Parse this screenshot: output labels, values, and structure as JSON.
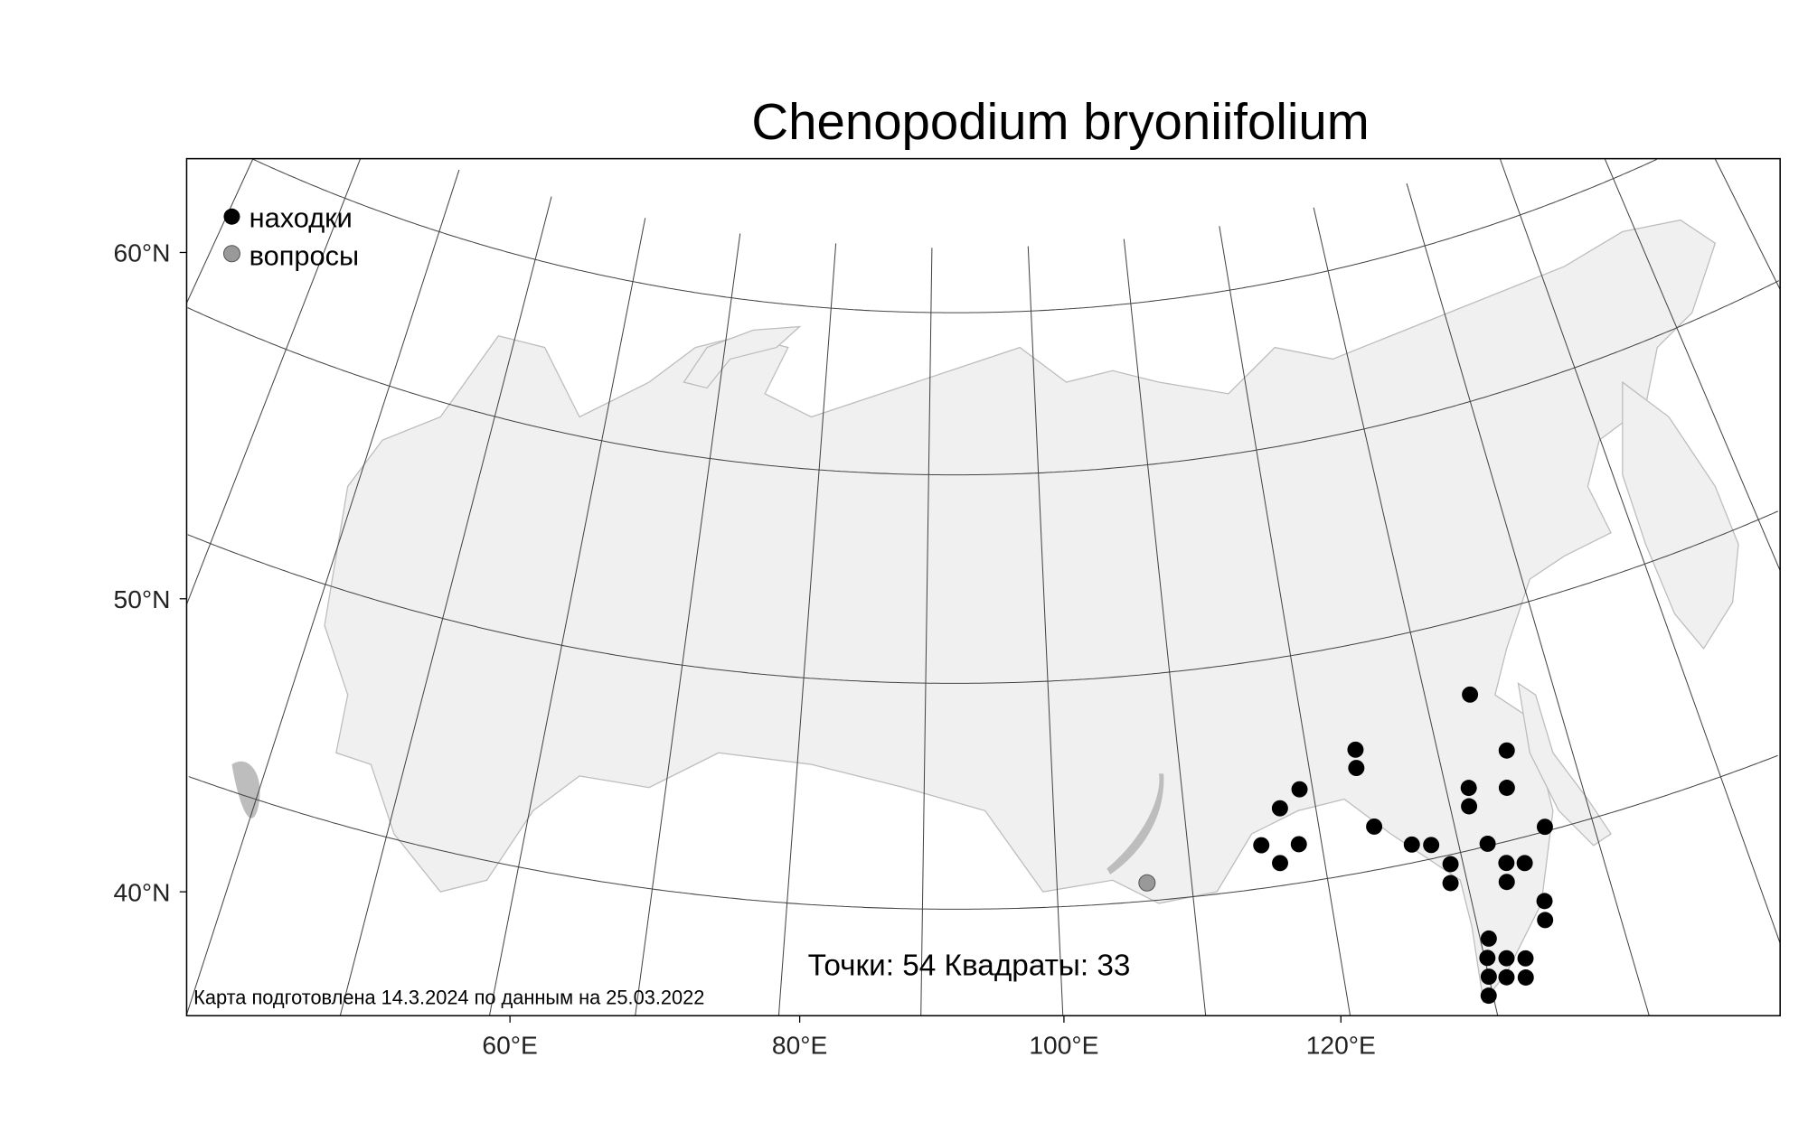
{
  "title": "Chenopodium bryoniifolium",
  "legend": {
    "placement": "top-left",
    "items": [
      {
        "label": "находки",
        "color": "#000000"
      },
      {
        "label": "вопросы",
        "color": "#999999"
      }
    ]
  },
  "stats": "Точки: 54 Квадраты: 33",
  "footer": "Карта подготовлена 14.3.2024 по данным на 25.03.2022",
  "colors": {
    "land": "#f0f0f0",
    "border": "#bdbdbd",
    "finds": "#000000",
    "questions": "#999999"
  },
  "chart_data": {
    "type": "scatter",
    "projection": "conic",
    "y_tick_labels": [
      "60°N",
      "50°N",
      "40°N"
    ],
    "x_tick_labels": [
      "60°E",
      "80°E",
      "100°E",
      "120°E"
    ],
    "series": [
      {
        "name": "находки",
        "color": "#000000",
        "points": [
          {
            "lon": 133.5,
            "lat": 56.7
          },
          {
            "lon": 123.8,
            "lat": 55.4
          },
          {
            "lon": 123.6,
            "lat": 54.6
          },
          {
            "lon": 135.2,
            "lat": 53.9
          },
          {
            "lon": 119.0,
            "lat": 54.1
          },
          {
            "lon": 131.7,
            "lat": 52.7
          },
          {
            "lon": 134.5,
            "lat": 52.3
          },
          {
            "lon": 117.3,
            "lat": 53.4
          },
          {
            "lon": 131.4,
            "lat": 51.9
          },
          {
            "lon": 124.1,
            "lat": 51.9
          },
          {
            "lon": 136.5,
            "lat": 50.2
          },
          {
            "lon": 115.5,
            "lat": 51.9
          },
          {
            "lon": 118.3,
            "lat": 51.7
          },
          {
            "lon": 126.6,
            "lat": 50.8
          },
          {
            "lon": 128.0,
            "lat": 50.6
          },
          {
            "lon": 132.1,
            "lat": 50.1
          },
          {
            "lon": 116.7,
            "lat": 51.0
          },
          {
            "lon": 129.1,
            "lat": 49.6
          },
          {
            "lon": 133.1,
            "lat": 49.1
          },
          {
            "lon": 134.4,
            "lat": 48.9
          },
          {
            "lon": 128.8,
            "lat": 48.8
          },
          {
            "lon": 132.8,
            "lat": 48.3
          },
          {
            "lon": 135.1,
            "lat": 47.1
          },
          {
            "lon": 134.8,
            "lat": 46.3
          },
          {
            "lon": 130.6,
            "lat": 46.1
          },
          {
            "lon": 130.2,
            "lat": 45.3
          },
          {
            "lon": 131.5,
            "lat": 45.1
          },
          {
            "lon": 132.8,
            "lat": 44.9
          },
          {
            "lon": 130.0,
            "lat": 44.5
          },
          {
            "lon": 131.2,
            "lat": 44.3
          },
          {
            "lon": 132.5,
            "lat": 44.1
          },
          {
            "lon": 129.7,
            "lat": 43.7
          }
        ]
      },
      {
        "name": "вопросы",
        "color": "#999999",
        "points": [
          {
            "lon": 106.7,
            "lat": 50.8
          }
        ]
      }
    ]
  }
}
